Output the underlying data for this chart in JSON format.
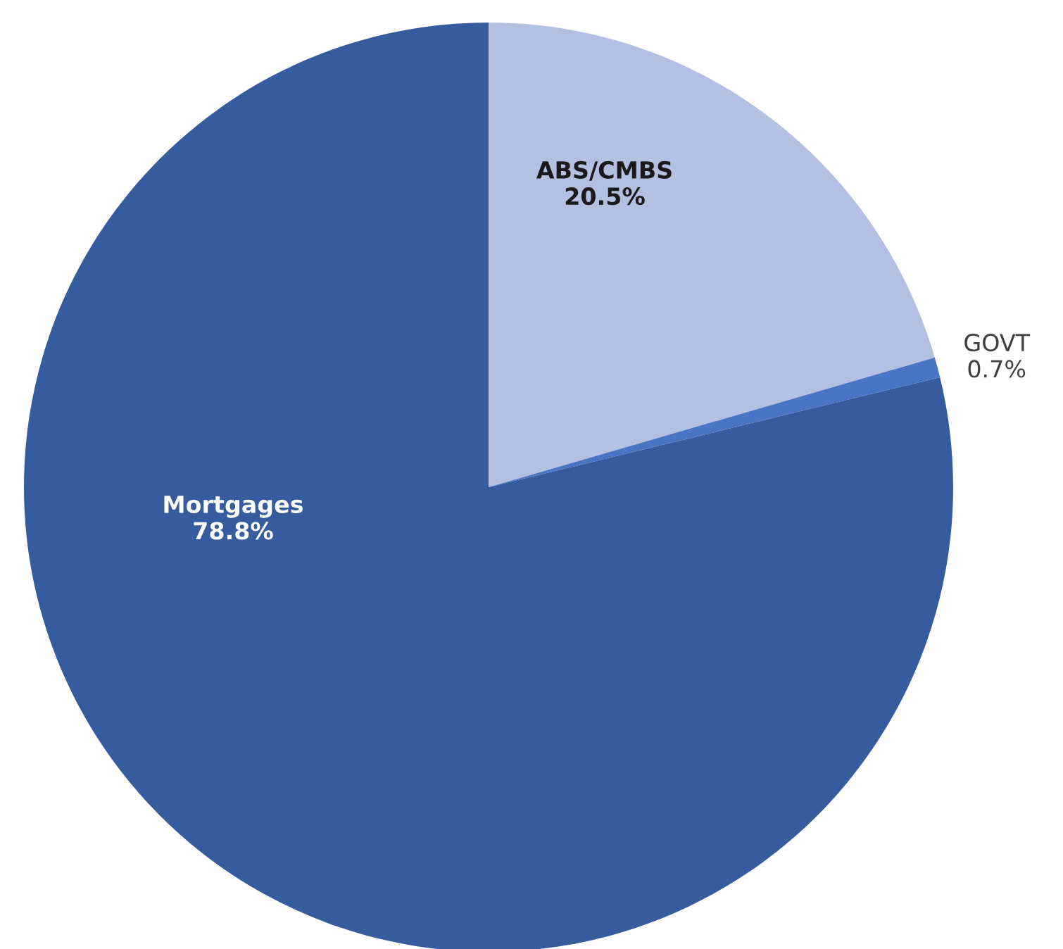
{
  "chart_data": {
    "type": "pie",
    "categories": [
      "ABS/CMBS",
      "GOVT",
      "Mortgages"
    ],
    "values": [
      20.5,
      0.7,
      78.8
    ],
    "colors": [
      "#b4c0e1",
      "#4a74c4",
      "#365c9f"
    ],
    "value_labels": [
      "20.5%",
      "0.7%",
      "78.8%"
    ]
  }
}
